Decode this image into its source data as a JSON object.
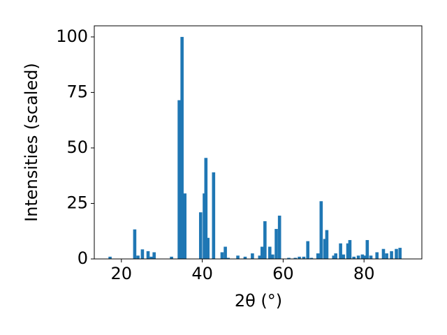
{
  "chart_data": {
    "type": "bar",
    "xlabel": "2θ (°)",
    "ylabel": "Intensities (scaled)",
    "color": "#1f77b4",
    "x": [
      17.2,
      23.3,
      24.1,
      25.2,
      26.6,
      27.4,
      28.1,
      32.4,
      34.3,
      35.0,
      35.7,
      39.6,
      40.5,
      40.9,
      41.4,
      42.8,
      44.9,
      45.7,
      46.4,
      48.8,
      50.6,
      52.4,
      54.2,
      54.8,
      55.5,
      56.7,
      57.4,
      58.3,
      59.1,
      61.4,
      63.0,
      64.0,
      65.1,
      66.1,
      67.0,
      68.6,
      69.4,
      70.3,
      70.8,
      72.5,
      73.0,
      74.2,
      74.9,
      76.0,
      76.5,
      77.5,
      78.6,
      79.6,
      80.3,
      80.8,
      81.7,
      83.2,
      84.8,
      85.6,
      86.8,
      88.0,
      88.9
    ],
    "values": [
      1,
      13.3,
      1.5,
      4.3,
      3.5,
      1,
      3,
      1,
      71.5,
      100,
      29.5,
      21,
      29.5,
      45.5,
      9.5,
      39,
      3,
      5.5,
      0.5,
      1.5,
      1,
      2.5,
      1.5,
      5.5,
      17,
      5.5,
      2,
      13.5,
      19.5,
      0.5,
      0.5,
      1,
      1,
      8,
      0.5,
      2.5,
      26,
      9,
      13,
      1.5,
      2.5,
      7,
      2,
      7,
      8.5,
      1,
      1.5,
      2,
      1.5,
      8.5,
      1.5,
      3,
      4.5,
      2.5,
      3.5,
      4.5,
      5
    ],
    "xlim": [
      13.3,
      94.3
    ],
    "ylim": [
      0,
      105
    ],
    "xticks": [
      20,
      40,
      60,
      80
    ],
    "yticks": [
      0,
      25,
      50,
      75,
      100
    ]
  }
}
